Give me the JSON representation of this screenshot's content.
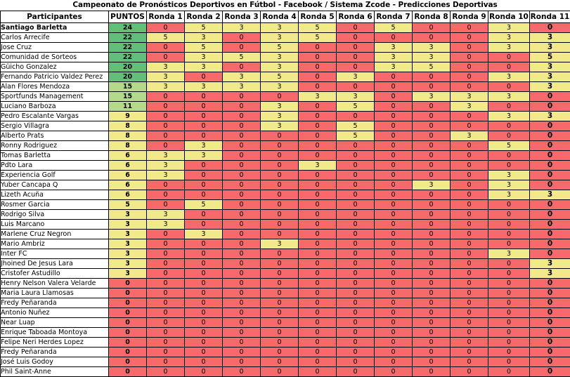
{
  "title": "Campeonato de Pronósticos Deportivos en Fútbol - Facebook / Sistema Zcode - Predicciones Deportivas",
  "headers": [
    "Participantes",
    "PUNTOS",
    "Ronda 1",
    "Ronda 2",
    "Ronda 3",
    "Ronda 4",
    "Ronda 5",
    "Ronda 6",
    "Ronda 7",
    "Ronda 8",
    "Ronda 9",
    "Ronda 10",
    "Ronda 11"
  ],
  "colors": {
    "zero": "#f8696b",
    "score": "#f2e98a",
    "points_top": "#63be7b",
    "points_high": "#b5d98a",
    "points_low": "#f2e98a",
    "points_zero": "#f8696b"
  },
  "rows": [
    {
      "name": "Santiago Barletta",
      "points": "24",
      "rounds": [
        "0",
        "5",
        "3",
        "3",
        "5",
        "0",
        "5",
        "0",
        "0",
        "3",
        "0"
      ]
    },
    {
      "name": "Carlos Arrecife",
      "points": "22",
      "rounds": [
        "5",
        "3",
        "0",
        "3",
        "5",
        "0",
        "0",
        "0",
        "0",
        "3",
        "3"
      ]
    },
    {
      "name": "Jose Cruz",
      "points": "22",
      "rounds": [
        "0",
        "5",
        "0",
        "5",
        "0",
        "0",
        "3",
        "3",
        "0",
        "3",
        "3"
      ]
    },
    {
      "name": "Comunidad de Sorteos",
      "points": "22",
      "rounds": [
        "0",
        "3",
        "5",
        "3",
        "0",
        "0",
        "3",
        "3",
        "0",
        "0",
        "5"
      ]
    },
    {
      "name": "Güicho Gonzalez",
      "points": "20",
      "rounds": [
        "3",
        "3",
        "0",
        "3",
        "0",
        "0",
        "3",
        "5",
        "0",
        "0",
        "3"
      ]
    },
    {
      "name": "Fernando Patricio Valdez Perez",
      "points": "20",
      "rounds": [
        "3",
        "0",
        "3",
        "5",
        "0",
        "3",
        "0",
        "0",
        "0",
        "3",
        "3"
      ]
    },
    {
      "name": "Alan Flores Mendoza",
      "points": "15",
      "rounds": [
        "3",
        "3",
        "3",
        "3",
        "0",
        "0",
        "0",
        "0",
        "0",
        "0",
        "3"
      ]
    },
    {
      "name": "Sportfunds Management",
      "points": "15",
      "rounds": [
        "0",
        "0",
        "0",
        "0",
        "3",
        "3",
        "0",
        "3",
        "3",
        "3",
        "0"
      ]
    },
    {
      "name": "Luciano Barboza",
      "points": "11",
      "rounds": [
        "0",
        "0",
        "0",
        "3",
        "0",
        "5",
        "0",
        "0",
        "3",
        "0",
        "0"
      ]
    },
    {
      "name": "Pedro Escalante Vargas",
      "points": "9",
      "rounds": [
        "0",
        "0",
        "0",
        "3",
        "0",
        "0",
        "0",
        "0",
        "0",
        "3",
        "3"
      ]
    },
    {
      "name": "Sergio Villagra",
      "points": "8",
      "rounds": [
        "0",
        "0",
        "0",
        "3",
        "0",
        "5",
        "0",
        "0",
        "0",
        "0",
        "0"
      ]
    },
    {
      "name": "Alberto Prats",
      "points": "8",
      "rounds": [
        "0",
        "0",
        "0",
        "0",
        "0",
        "5",
        "0",
        "0",
        "3",
        "0",
        "0"
      ]
    },
    {
      "name": "Ronny Rodriguez",
      "points": "8",
      "rounds": [
        "0",
        "3",
        "0",
        "0",
        "0",
        "0",
        "0",
        "0",
        "0",
        "5",
        "0"
      ]
    },
    {
      "name": "Tomas Barletta",
      "points": "6",
      "rounds": [
        "3",
        "3",
        "0",
        "0",
        "0",
        "0",
        "0",
        "0",
        "0",
        "0",
        "0"
      ]
    },
    {
      "name": "Pdto Lara",
      "points": "6",
      "rounds": [
        "3",
        "0",
        "0",
        "0",
        "3",
        "0",
        "0",
        "0",
        "0",
        "0",
        "0"
      ]
    },
    {
      "name": "Experiencia Golf",
      "points": "6",
      "rounds": [
        "3",
        "0",
        "0",
        "0",
        "0",
        "0",
        "0",
        "0",
        "0",
        "3",
        "0"
      ]
    },
    {
      "name": "Yuber Cancapa Q",
      "points": "6",
      "rounds": [
        "0",
        "0",
        "0",
        "0",
        "0",
        "0",
        "0",
        "3",
        "0",
        "3",
        "0"
      ]
    },
    {
      "name": "Lizeth Acuña",
      "points": "6",
      "rounds": [
        "0",
        "0",
        "0",
        "0",
        "0",
        "0",
        "0",
        "0",
        "0",
        "3",
        "3"
      ]
    },
    {
      "name": "Rosmer Garcia",
      "points": "5",
      "rounds": [
        "0",
        "5",
        "0",
        "0",
        "0",
        "0",
        "0",
        "0",
        "0",
        "0",
        "0"
      ]
    },
    {
      "name": "Rodrigo Silva",
      "points": "3",
      "rounds": [
        "3",
        "0",
        "0",
        "0",
        "0",
        "0",
        "0",
        "0",
        "0",
        "0",
        "0"
      ]
    },
    {
      "name": "Luis Marcano",
      "points": "3",
      "rounds": [
        "3",
        "0",
        "0",
        "0",
        "0",
        "0",
        "0",
        "0",
        "0",
        "0",
        "0"
      ]
    },
    {
      "name": "Marlene Cruz Negron",
      "points": "3",
      "rounds": [
        "0",
        "3",
        "0",
        "0",
        "0",
        "0",
        "0",
        "0",
        "0",
        "0",
        "0"
      ]
    },
    {
      "name": "Mario Ambriz",
      "points": "3",
      "rounds": [
        "0",
        "0",
        "0",
        "3",
        "0",
        "0",
        "0",
        "0",
        "0",
        "0",
        "0"
      ]
    },
    {
      "name": "Inter FC",
      "points": "3",
      "rounds": [
        "0",
        "0",
        "0",
        "0",
        "0",
        "0",
        "0",
        "0",
        "0",
        "3",
        "0"
      ]
    },
    {
      "name": "Jhoined De Jesus Lara",
      "points": "3",
      "rounds": [
        "0",
        "0",
        "0",
        "0",
        "0",
        "0",
        "0",
        "0",
        "0",
        "0",
        "3"
      ]
    },
    {
      "name": "Cristofer Astudillo",
      "points": "3",
      "rounds": [
        "0",
        "0",
        "0",
        "0",
        "0",
        "0",
        "0",
        "0",
        "0",
        "0",
        "3"
      ]
    },
    {
      "name": "Henry Nelson Valera Velarde",
      "points": "0",
      "rounds": [
        "0",
        "0",
        "0",
        "0",
        "0",
        "0",
        "0",
        "0",
        "0",
        "0",
        "0"
      ]
    },
    {
      "name": "Maria Laura Llamosas",
      "points": "0",
      "rounds": [
        "0",
        "0",
        "0",
        "0",
        "0",
        "0",
        "0",
        "0",
        "0",
        "0",
        "0"
      ]
    },
    {
      "name": "Fredy Peñaranda",
      "points": "0",
      "rounds": [
        "0",
        "0",
        "0",
        "0",
        "0",
        "0",
        "0",
        "0",
        "0",
        "0",
        "0"
      ]
    },
    {
      "name": "Antonio Nuñez",
      "points": "0",
      "rounds": [
        "0",
        "0",
        "0",
        "0",
        "0",
        "0",
        "0",
        "0",
        "0",
        "0",
        "0"
      ]
    },
    {
      "name": "Near Luap",
      "points": "0",
      "rounds": [
        "0",
        "0",
        "0",
        "0",
        "0",
        "0",
        "0",
        "0",
        "0",
        "0",
        "0"
      ]
    },
    {
      "name": "Enrique Taboada Montoya",
      "points": "0",
      "rounds": [
        "0",
        "0",
        "0",
        "0",
        "0",
        "0",
        "0",
        "0",
        "0",
        "0",
        "0"
      ]
    },
    {
      "name": "Felipe Neri Herdes Lopez",
      "points": "0",
      "rounds": [
        "0",
        "0",
        "0",
        "0",
        "0",
        "0",
        "0",
        "0",
        "0",
        "0",
        "0"
      ]
    },
    {
      "name": "Fredy Peñaranda",
      "points": "0",
      "rounds": [
        "0",
        "0",
        "0",
        "0",
        "0",
        "0",
        "0",
        "0",
        "0",
        "0",
        "0"
      ]
    },
    {
      "name": "José Luis Godoy",
      "points": "0",
      "rounds": [
        "0",
        "0",
        "0",
        "0",
        "0",
        "0",
        "0",
        "0",
        "0",
        "0",
        "0"
      ]
    },
    {
      "name": "Phil Saint-Anne",
      "points": "0",
      "rounds": [
        "0",
        "0",
        "0",
        "0",
        "0",
        "0",
        "0",
        "0",
        "0",
        "0",
        "0"
      ]
    }
  ]
}
